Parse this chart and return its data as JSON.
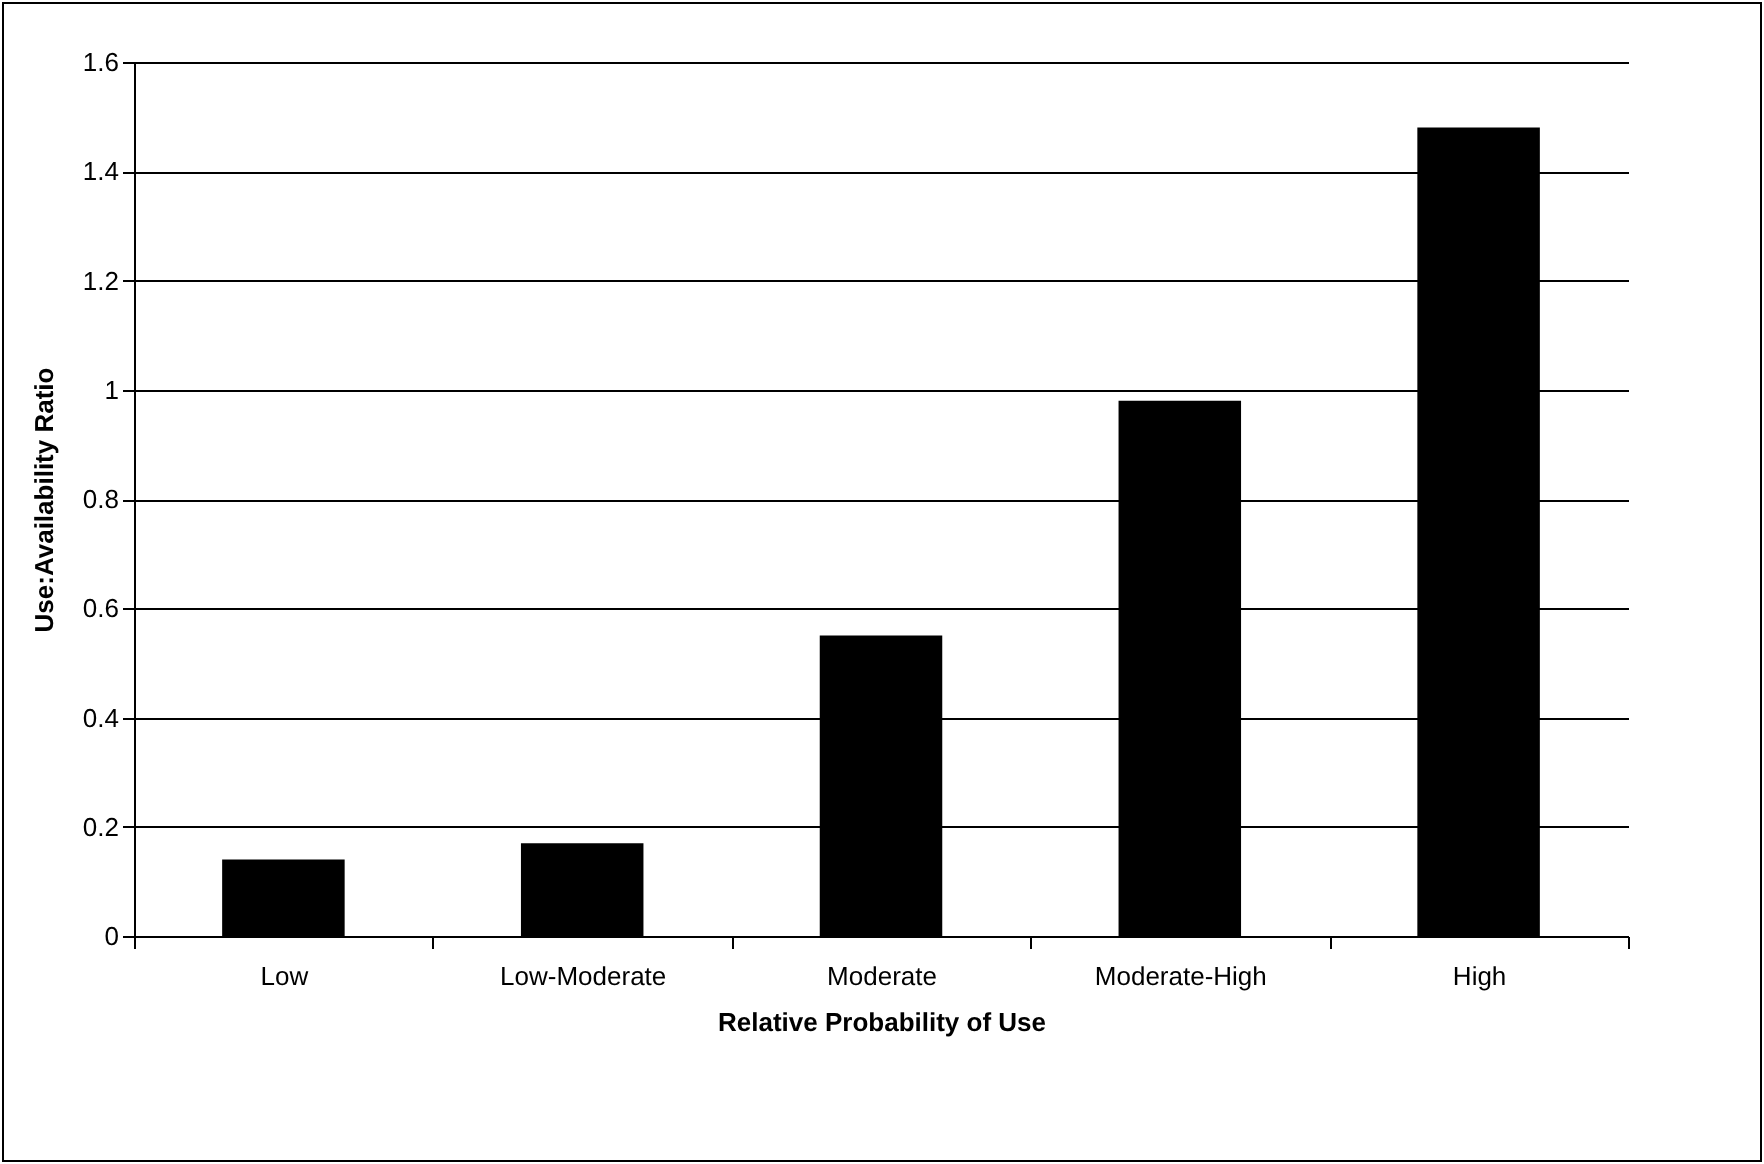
{
  "chart_data": {
    "type": "bar",
    "xlabel": "Relative Probability of Use",
    "ylabel": "Use:Availability Ratio",
    "categories": [
      "Low",
      "Low-Moderate",
      "Moderate",
      "Moderate-High",
      "High"
    ],
    "values": [
      0.14,
      0.17,
      0.55,
      0.98,
      1.48
    ],
    "color": "#000000",
    "ylim": [
      0,
      1.6
    ],
    "yticks": [
      0,
      0.2,
      0.4,
      0.6,
      0.8,
      1,
      1.2,
      1.4,
      1.6
    ],
    "grid": "y"
  }
}
